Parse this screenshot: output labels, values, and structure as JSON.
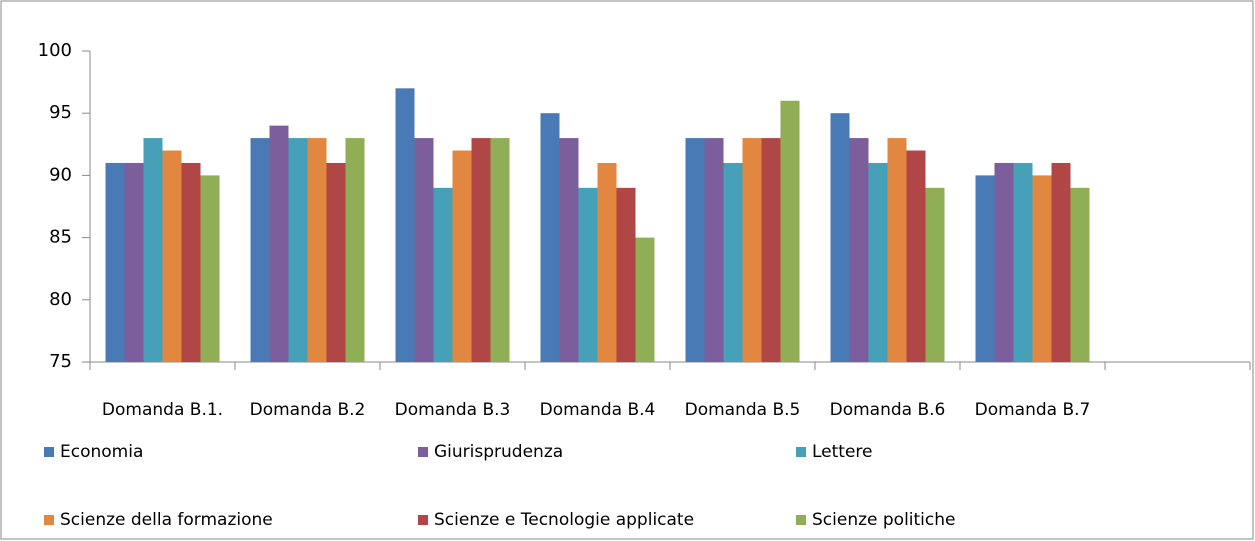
{
  "chart_data": {
    "type": "bar",
    "categories": [
      "Domanda B.1.",
      "Domanda B.2",
      "Domanda B.3",
      "Domanda B.4",
      "Domanda B.5",
      "Domanda B.6",
      "Domanda B.7",
      null
    ],
    "series": [
      {
        "name": "Economia",
        "color": "#4a7ab5",
        "values": [
          91,
          93,
          97,
          95,
          93,
          95,
          90,
          null
        ]
      },
      {
        "name": "Giurisprudenza",
        "color": "#7b5e9b",
        "values": [
          91,
          94,
          93,
          93,
          93,
          93,
          91,
          null
        ]
      },
      {
        "name": "Lettere",
        "color": "#45a0b8",
        "values": [
          93,
          93,
          89,
          89,
          91,
          91,
          91,
          null
        ]
      },
      {
        "name": "Scienze della formazione",
        "color": "#e2873f",
        "values": [
          92,
          93,
          92,
          91,
          93,
          93,
          90,
          null
        ]
      },
      {
        "name": "Scienze e Tecnologie applicate",
        "color": "#b04645",
        "values": [
          91,
          91,
          93,
          89,
          93,
          92,
          91,
          null
        ]
      },
      {
        "name": "Scienze politiche",
        "color": "#8fae55",
        "values": [
          90,
          93,
          93,
          85,
          96,
          89,
          89,
          null
        ]
      }
    ],
    "ylim": [
      75,
      100
    ],
    "yticks": [
      75,
      80,
      85,
      90,
      95,
      100
    ],
    "grid": false,
    "legend": "bottom"
  }
}
